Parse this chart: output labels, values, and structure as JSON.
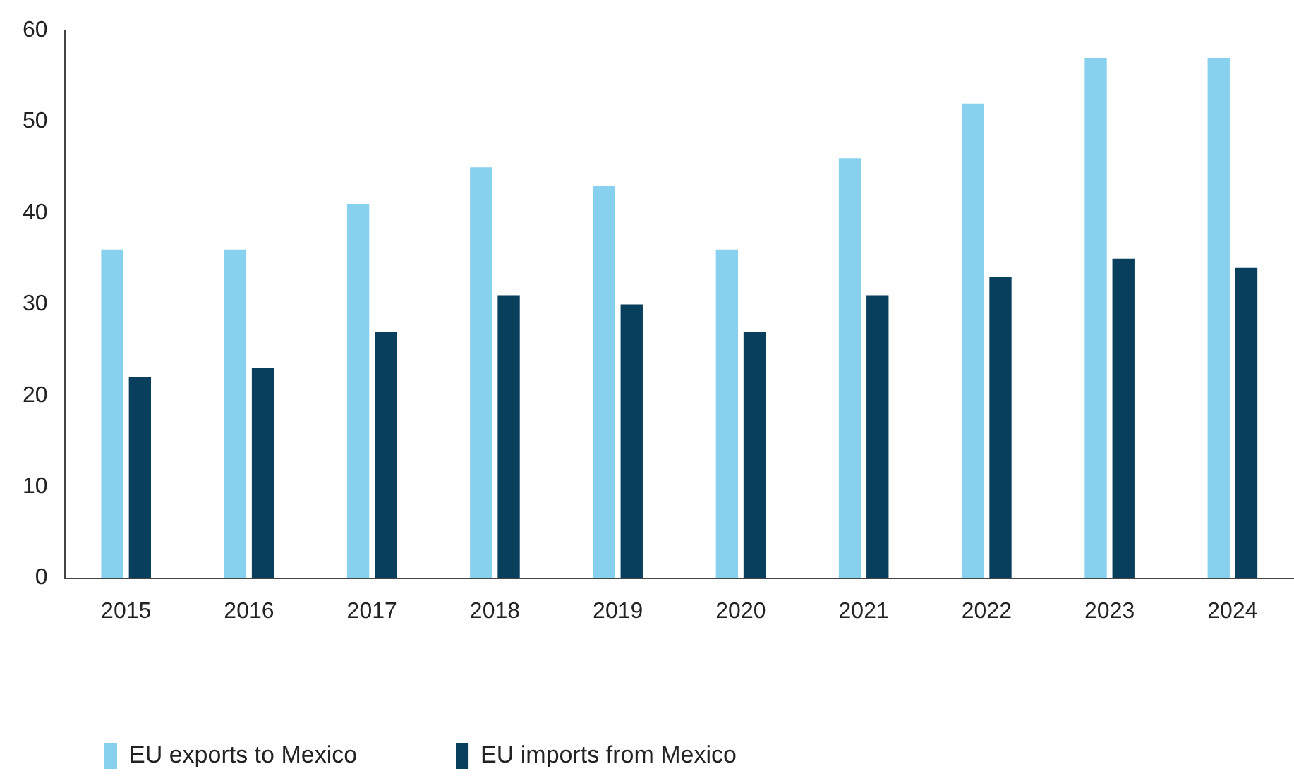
{
  "chart_data": {
    "type": "bar",
    "categories": [
      "2015",
      "2016",
      "2017",
      "2018",
      "2019",
      "2020",
      "2021",
      "2022",
      "2023",
      "2024"
    ],
    "series": [
      {
        "name": "EU exports to Mexico",
        "color": "#87d1ee",
        "values": [
          36,
          36,
          41,
          45,
          43,
          36,
          46,
          52,
          57,
          57
        ]
      },
      {
        "name": "EU imports from Mexico",
        "color": "#073f5c",
        "values": [
          22,
          23,
          27,
          31,
          30,
          27,
          31,
          33,
          35,
          34
        ]
      }
    ],
    "ylim": [
      0,
      60
    ],
    "yticks": [
      0,
      10,
      20,
      30,
      40,
      50,
      60
    ],
    "grid": false,
    "legend": "bottom left"
  }
}
